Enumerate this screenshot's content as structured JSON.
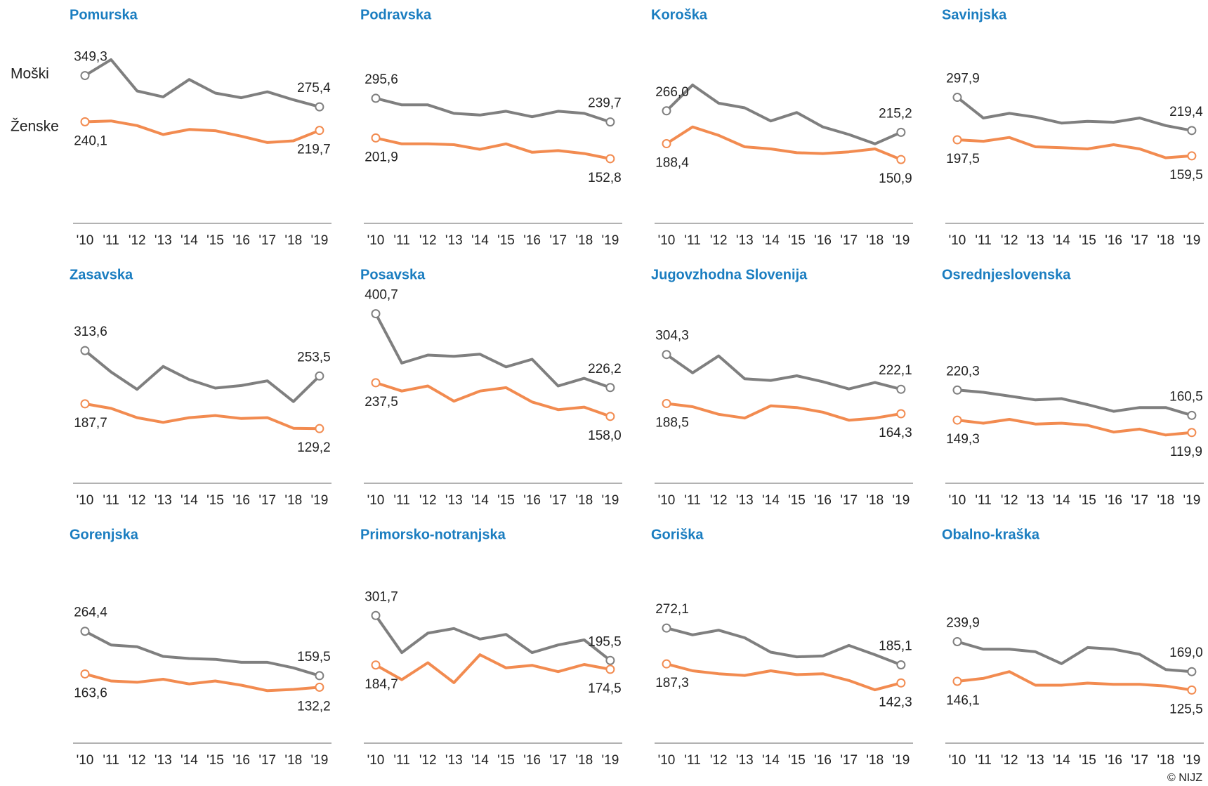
{
  "chart_data": [
    {
      "type": "line",
      "title": "Pomurska",
      "categories": [
        "'10",
        "'11",
        "'12",
        "'13",
        "'14",
        "'15",
        "'16",
        "'17",
        "'18",
        "'19"
      ],
      "ylim": [
        0,
        420
      ],
      "series": [
        {
          "name": "Moški",
          "color": "#7f7f7f",
          "values": [
            349.3,
            387,
            313,
            299,
            340,
            308,
            297,
            311,
            292,
            275.4
          ],
          "value_labels": [
            "349,3",
            null,
            null,
            null,
            null,
            null,
            null,
            null,
            null,
            "275,4"
          ]
        },
        {
          "name": "Ženske",
          "color": "#f28b50",
          "values": [
            240.1,
            242,
            231,
            210,
            222,
            219,
            206,
            191,
            195,
            219.7
          ],
          "value_labels": [
            "240,1",
            null,
            null,
            null,
            null,
            null,
            null,
            null,
            null,
            "219,7"
          ]
        }
      ]
    },
    {
      "type": "line",
      "title": "Podravska",
      "categories": [
        "'10",
        "'11",
        "'12",
        "'13",
        "'14",
        "'15",
        "'16",
        "'17",
        "'18",
        "'19"
      ],
      "ylim": [
        0,
        420
      ],
      "series": [
        {
          "color": "#7f7f7f",
          "values": [
            295.6,
            280,
            280,
            260,
            256,
            265,
            252,
            265,
            260,
            239.7
          ],
          "value_labels": [
            "295,6",
            null,
            null,
            null,
            null,
            null,
            null,
            null,
            null,
            "239,7"
          ]
        },
        {
          "color": "#f28b50",
          "values": [
            201.9,
            188,
            188,
            186,
            175,
            188,
            168,
            172,
            165,
            152.8
          ],
          "value_labels": [
            "201,9",
            null,
            null,
            null,
            null,
            null,
            null,
            null,
            null,
            "152,8"
          ]
        }
      ]
    },
    {
      "type": "line",
      "title": "Koroška",
      "categories": [
        "'10",
        "'11",
        "'12",
        "'13",
        "'14",
        "'15",
        "'16",
        "'17",
        "'18",
        "'19"
      ],
      "ylim": [
        0,
        420
      ],
      "series": [
        {
          "color": "#7f7f7f",
          "values": [
            266.0,
            327,
            284,
            273,
            242,
            262,
            228,
            210,
            188,
            215.2
          ],
          "value_labels": [
            "266,0",
            null,
            null,
            null,
            null,
            null,
            null,
            null,
            null,
            "215,2"
          ]
        },
        {
          "color": "#f28b50",
          "values": [
            188.4,
            228,
            208,
            181,
            176,
            167,
            165,
            169,
            176,
            150.9
          ],
          "value_labels": [
            "188,4",
            null,
            null,
            null,
            null,
            null,
            null,
            null,
            null,
            "150,9"
          ]
        }
      ]
    },
    {
      "type": "line",
      "title": "Savinjska",
      "categories": [
        "'10",
        "'11",
        "'12",
        "'13",
        "'14",
        "'15",
        "'16",
        "'17",
        "'18",
        "'19"
      ],
      "ylim": [
        0,
        420
      ],
      "series": [
        {
          "color": "#7f7f7f",
          "values": [
            297.9,
            249,
            260,
            251,
            237,
            241,
            239,
            249,
            231,
            219.4
          ],
          "value_labels": [
            "297,9",
            null,
            null,
            null,
            null,
            null,
            null,
            null,
            null,
            "219,4"
          ]
        },
        {
          "color": "#f28b50",
          "values": [
            197.5,
            194,
            203,
            181,
            179,
            176,
            186,
            176,
            155,
            159.5
          ],
          "value_labels": [
            "197,5",
            null,
            null,
            null,
            null,
            null,
            null,
            null,
            null,
            "159,5"
          ]
        }
      ]
    },
    {
      "type": "line",
      "title": "Zasavska",
      "categories": [
        "'10",
        "'11",
        "'12",
        "'13",
        "'14",
        "'15",
        "'16",
        "'17",
        "'18",
        "'19"
      ],
      "ylim": [
        0,
        420
      ],
      "series": [
        {
          "color": "#7f7f7f",
          "values": [
            313.6,
            263,
            222,
            276,
            245,
            225,
            231,
            242,
            193,
            253.5
          ],
          "value_labels": [
            "313,6",
            null,
            null,
            null,
            null,
            null,
            null,
            null,
            null,
            "253,5"
          ]
        },
        {
          "color": "#f28b50",
          "values": [
            187.7,
            177,
            155,
            144,
            155,
            160,
            153,
            155,
            130,
            129.2
          ],
          "value_labels": [
            "187,7",
            null,
            null,
            null,
            null,
            null,
            null,
            null,
            null,
            "129,2"
          ]
        }
      ]
    },
    {
      "type": "line",
      "title": "Posavska",
      "categories": [
        "'10",
        "'11",
        "'12",
        "'13",
        "'14",
        "'15",
        "'16",
        "'17",
        "'18",
        "'19"
      ],
      "ylim": [
        0,
        420
      ],
      "series": [
        {
          "color": "#7f7f7f",
          "values": [
            400.7,
            284,
            303,
            300,
            305,
            275,
            293,
            230,
            248,
            226.2
          ],
          "value_labels": [
            "400,7",
            null,
            null,
            null,
            null,
            null,
            null,
            null,
            null,
            "226,2"
          ]
        },
        {
          "color": "#f28b50",
          "values": [
            237.5,
            218,
            230,
            194,
            218,
            226,
            192,
            174,
            180,
            158.0
          ],
          "value_labels": [
            "237,5",
            null,
            null,
            null,
            null,
            null,
            null,
            null,
            null,
            "158,0"
          ]
        }
      ]
    },
    {
      "type": "line",
      "title": "Jugovzhodna  Slovenija",
      "categories": [
        "'10",
        "'11",
        "'12",
        "'13",
        "'14",
        "'15",
        "'16",
        "'17",
        "'18",
        "'19"
      ],
      "ylim": [
        0,
        420
      ],
      "series": [
        {
          "color": "#7f7f7f",
          "values": [
            304.3,
            261,
            301,
            247,
            243,
            254,
            240,
            223,
            238,
            222.1
          ],
          "value_labels": [
            "304,3",
            null,
            null,
            null,
            null,
            null,
            null,
            null,
            null,
            "222,1"
          ]
        },
        {
          "color": "#f28b50",
          "values": [
            188.5,
            181,
            163,
            154,
            183,
            179,
            168,
            149,
            154,
            164.3
          ],
          "value_labels": [
            "188,5",
            null,
            null,
            null,
            null,
            null,
            null,
            null,
            null,
            "164,3"
          ]
        }
      ]
    },
    {
      "type": "line",
      "title": "Osrednjeslovenska",
      "categories": [
        "'10",
        "'11",
        "'12",
        "'13",
        "'14",
        "'15",
        "'16",
        "'17",
        "'18",
        "'19"
      ],
      "ylim": [
        0,
        420
      ],
      "series": [
        {
          "color": "#7f7f7f",
          "values": [
            220.3,
            215,
            206,
            197,
            200,
            186,
            170,
            179,
            179,
            160.5
          ],
          "value_labels": [
            "220,3",
            null,
            null,
            null,
            null,
            null,
            null,
            null,
            null,
            "160,5"
          ]
        },
        {
          "color": "#f28b50",
          "values": [
            149.3,
            142,
            151,
            140,
            142,
            137,
            121,
            128,
            114,
            119.9
          ],
          "value_labels": [
            "149,3",
            null,
            null,
            null,
            null,
            null,
            null,
            null,
            null,
            "119,9"
          ]
        }
      ]
    },
    {
      "type": "line",
      "title": "Gorenjska",
      "categories": [
        "'10",
        "'11",
        "'12",
        "'13",
        "'14",
        "'15",
        "'16",
        "'17",
        "'18",
        "'19"
      ],
      "ylim": [
        0,
        420
      ],
      "series": [
        {
          "color": "#7f7f7f",
          "values": [
            264.4,
            232,
            228,
            205,
            200,
            198,
            191,
            191,
            178,
            159.5
          ],
          "value_labels": [
            "264,4",
            null,
            null,
            null,
            null,
            null,
            null,
            null,
            null,
            "159,5"
          ]
        },
        {
          "color": "#f28b50",
          "values": [
            163.6,
            147,
            144,
            151,
            140,
            147,
            137,
            124,
            127,
            132.2
          ],
          "value_labels": [
            "163,6",
            null,
            null,
            null,
            null,
            null,
            null,
            null,
            null,
            "132,2"
          ]
        }
      ]
    },
    {
      "type": "line",
      "title": "Primorsko-notranjska",
      "categories": [
        "'10",
        "'11",
        "'12",
        "'13",
        "'14",
        "'15",
        "'16",
        "'17",
        "'18",
        "'19"
      ],
      "ylim": [
        0,
        420
      ],
      "series": [
        {
          "color": "#7f7f7f",
          "values": [
            301.7,
            214,
            260,
            271,
            246,
            257,
            214,
            232,
            244,
            195.5
          ],
          "value_labels": [
            "301,7",
            null,
            null,
            null,
            null,
            null,
            null,
            null,
            null,
            "195,5"
          ]
        },
        {
          "color": "#f28b50",
          "values": [
            184.7,
            150,
            190,
            143,
            209,
            178,
            184,
            169,
            186,
            174.5
          ],
          "value_labels": [
            "184,7",
            null,
            null,
            null,
            null,
            null,
            null,
            null,
            null,
            "174,5"
          ]
        }
      ]
    },
    {
      "type": "line",
      "title": "Goriška",
      "categories": [
        "'10",
        "'11",
        "'12",
        "'13",
        "'14",
        "'15",
        "'16",
        "'17",
        "'18",
        "'19"
      ],
      "ylim": [
        0,
        420
      ],
      "series": [
        {
          "color": "#7f7f7f",
          "values": [
            272.1,
            256,
            267,
            249,
            215,
            204,
            206,
            231,
            209,
            185.1
          ],
          "value_labels": [
            "272,1",
            null,
            null,
            null,
            null,
            null,
            null,
            null,
            null,
            "185,1"
          ]
        },
        {
          "color": "#f28b50",
          "values": [
            187.3,
            171,
            164,
            160,
            171,
            162,
            164,
            148,
            126,
            142.3
          ],
          "value_labels": [
            "187,3",
            null,
            null,
            null,
            null,
            null,
            null,
            null,
            null,
            "142,3"
          ]
        }
      ]
    },
    {
      "type": "line",
      "title": "Obalno-kraška",
      "categories": [
        "'10",
        "'11",
        "'12",
        "'13",
        "'14",
        "'15",
        "'16",
        "'17",
        "'18",
        "'19"
      ],
      "ylim": [
        0,
        420
      ],
      "series": [
        {
          "color": "#7f7f7f",
          "values": [
            239.9,
            222,
            222,
            216,
            188,
            226,
            222,
            210,
            174,
            169.0
          ],
          "value_labels": [
            "239,9",
            null,
            null,
            null,
            null,
            null,
            null,
            null,
            null,
            "169,0"
          ]
        },
        {
          "color": "#f28b50",
          "values": [
            146.1,
            153,
            169,
            137,
            137,
            142,
            139,
            139,
            135,
            125.5
          ],
          "value_labels": [
            "146,1",
            null,
            null,
            null,
            null,
            null,
            null,
            null,
            null,
            "125,5"
          ]
        }
      ]
    }
  ],
  "source": "© NIJZ"
}
